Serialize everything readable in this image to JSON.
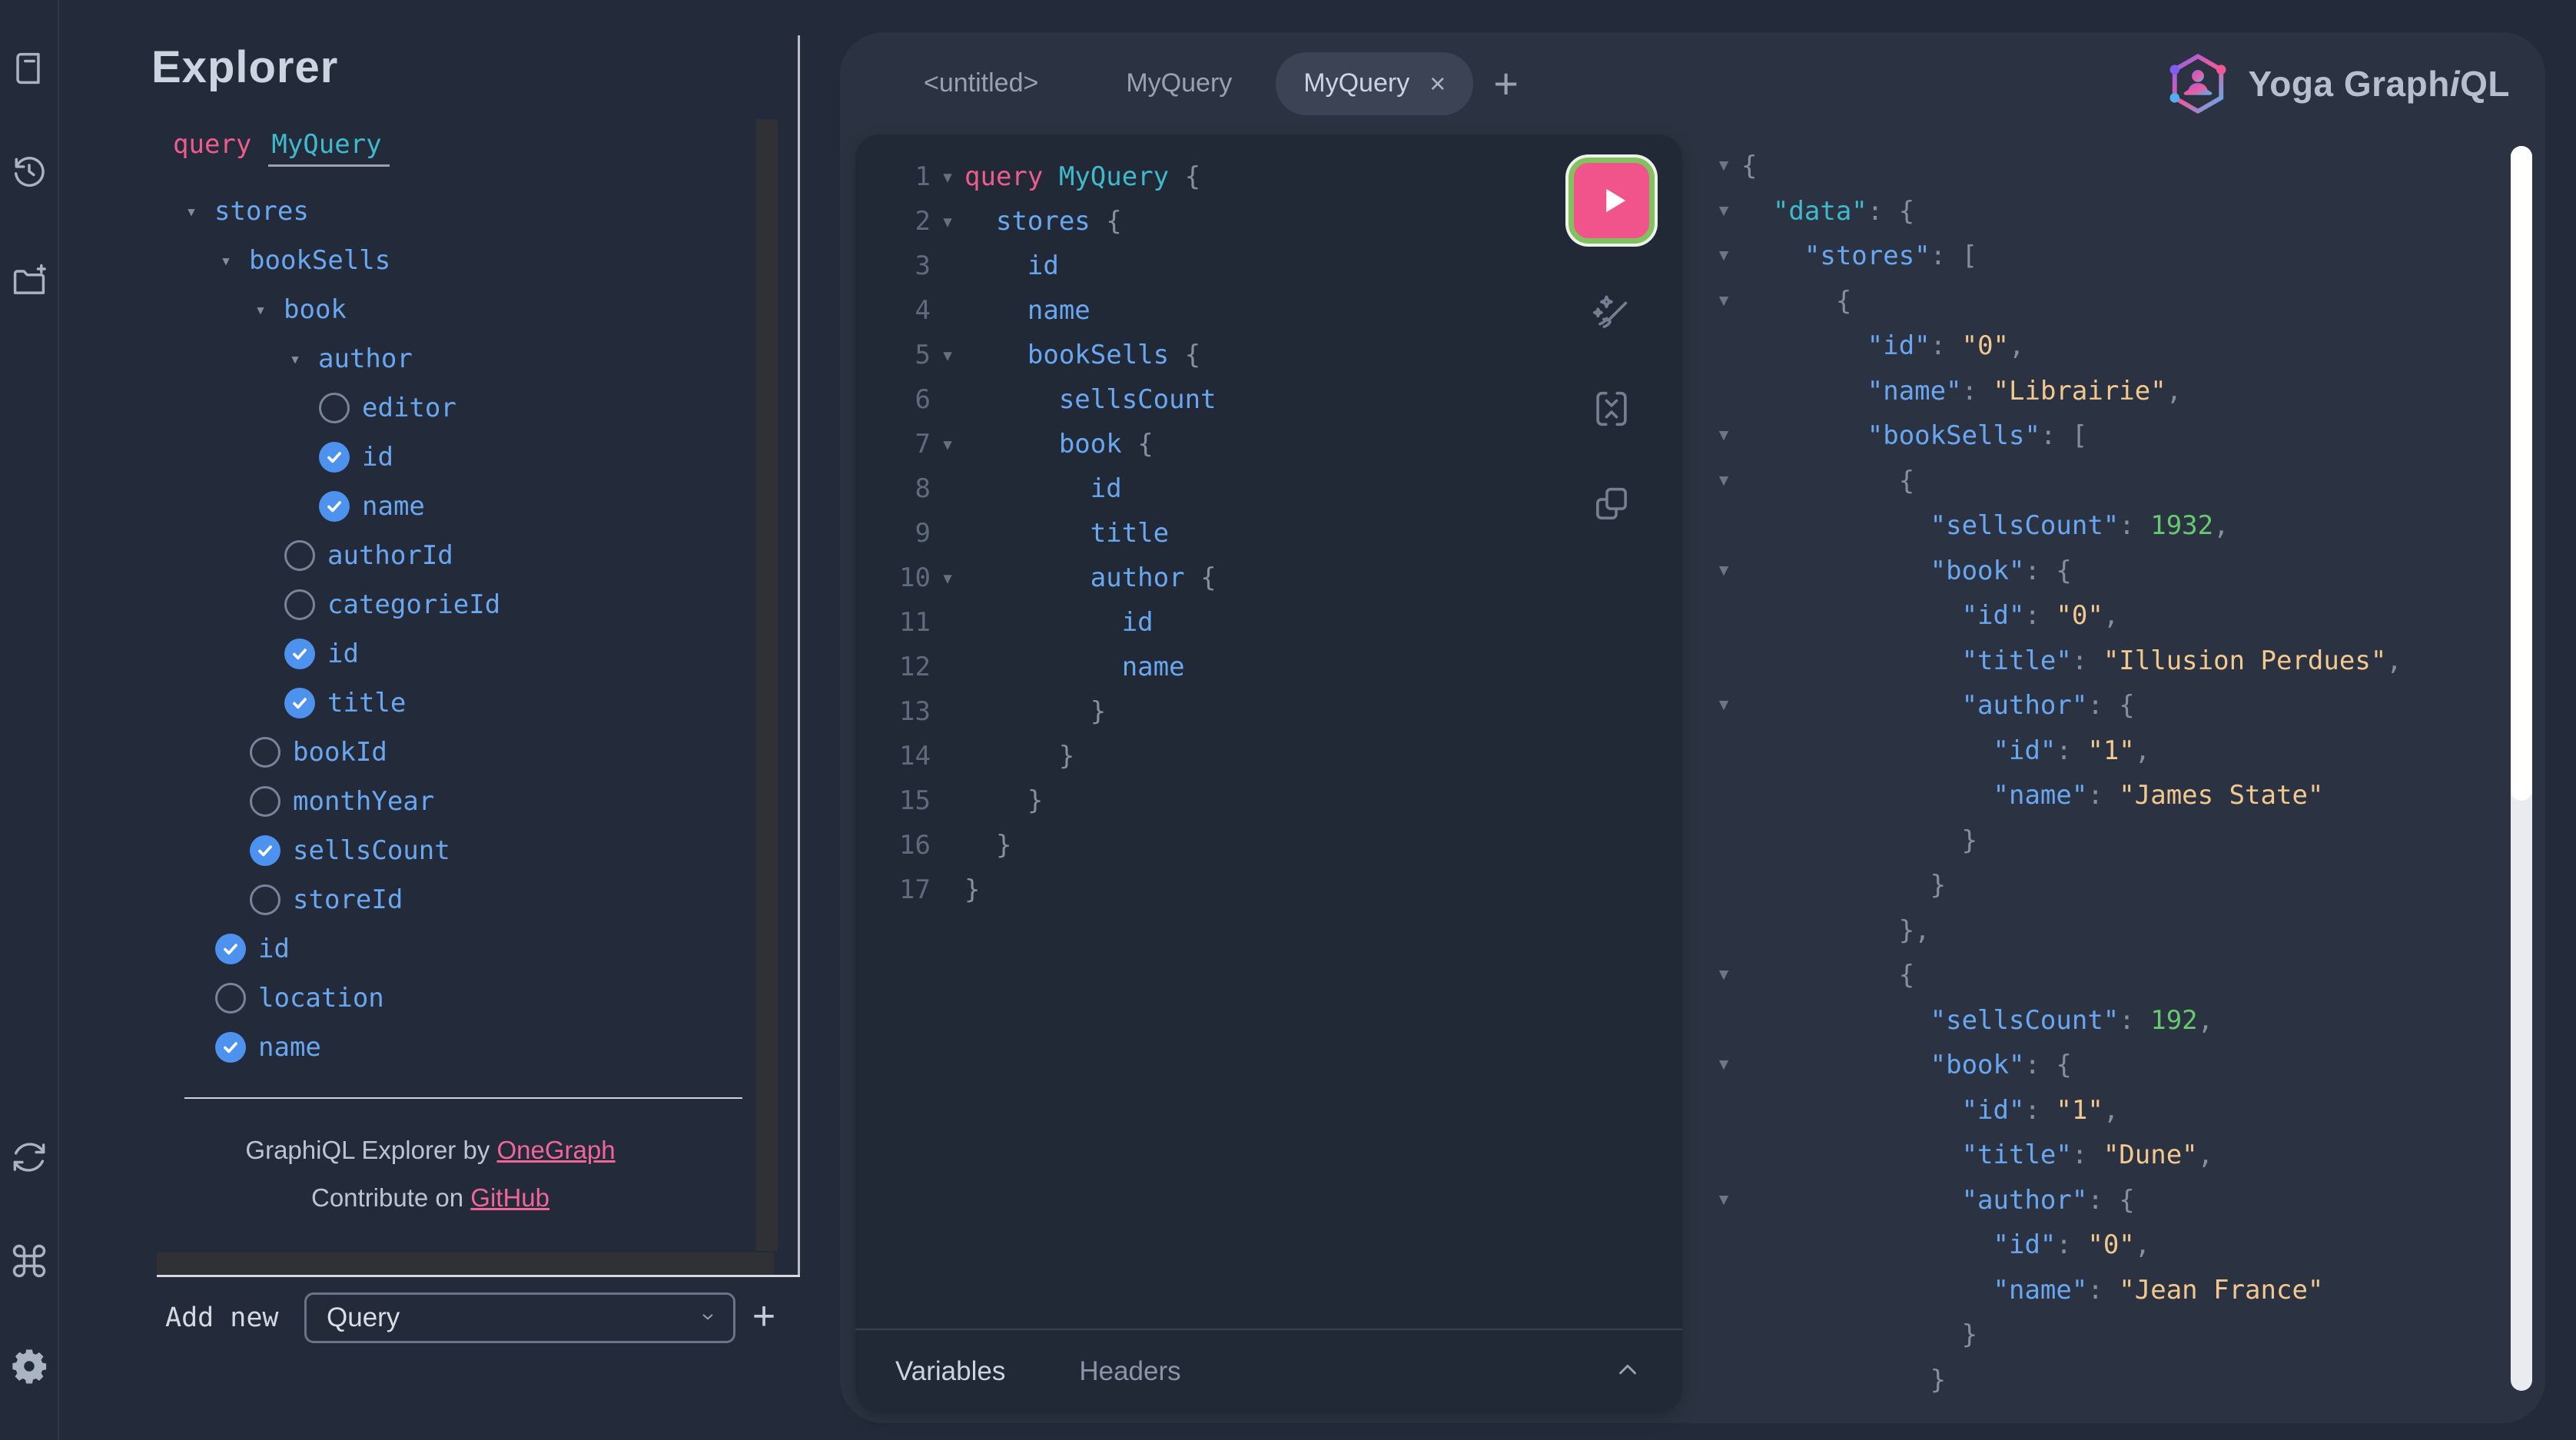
{
  "logo": {
    "text_pre": "Yoga Graph",
    "text_italic": "i",
    "text_post": "QL"
  },
  "sidebar": {
    "icons": [
      {
        "name": "docs-icon"
      },
      {
        "name": "history-icon"
      },
      {
        "name": "new-collection-icon"
      },
      {
        "name": "refetch-schema-icon"
      },
      {
        "name": "keyboard-shortcuts-icon"
      },
      {
        "name": "settings-icon"
      }
    ]
  },
  "explorer": {
    "title": "Explorer",
    "operation_keyword": "query",
    "operation_name": "MyQuery",
    "tree": [
      {
        "label": "stores",
        "depth": 0,
        "kind": "expanded"
      },
      {
        "label": "bookSells",
        "depth": 1,
        "kind": "expanded"
      },
      {
        "label": "book",
        "depth": 2,
        "kind": "expanded"
      },
      {
        "label": "author",
        "depth": 3,
        "kind": "expanded"
      },
      {
        "label": "editor",
        "depth": 4,
        "kind": "unchecked"
      },
      {
        "label": "id",
        "depth": 4,
        "kind": "checked"
      },
      {
        "label": "name",
        "depth": 4,
        "kind": "checked"
      },
      {
        "label": "authorId",
        "depth": 3,
        "kind": "unchecked"
      },
      {
        "label": "categorieId",
        "depth": 3,
        "kind": "unchecked"
      },
      {
        "label": "id",
        "depth": 3,
        "kind": "checked"
      },
      {
        "label": "title",
        "depth": 3,
        "kind": "checked"
      },
      {
        "label": "bookId",
        "depth": 2,
        "kind": "unchecked"
      },
      {
        "label": "monthYear",
        "depth": 2,
        "kind": "unchecked"
      },
      {
        "label": "sellsCount",
        "depth": 2,
        "kind": "checked"
      },
      {
        "label": "storeId",
        "depth": 2,
        "kind": "unchecked"
      },
      {
        "label": "id",
        "depth": 1,
        "kind": "checked"
      },
      {
        "label": "location",
        "depth": 1,
        "kind": "unchecked"
      },
      {
        "label": "name",
        "depth": 1,
        "kind": "checked"
      }
    ],
    "attribution": {
      "by_text": "GraphiQL Explorer by ",
      "by_link": "OneGraph",
      "contribute_text": "Contribute on ",
      "contribute_link": "GitHub"
    },
    "add_new_label": "Add new",
    "add_new_selected": "Query",
    "add_new_button": "+"
  },
  "tabs": {
    "items": [
      {
        "label": "<untitled>",
        "active": false
      },
      {
        "label": "MyQuery",
        "active": false
      },
      {
        "label": "MyQuery",
        "active": true,
        "close": "×"
      }
    ],
    "new_tab_label": "+"
  },
  "editor": {
    "lines": [
      {
        "n": 1,
        "f": true,
        "i": 0,
        "t": [
          [
            "kw",
            "query"
          ],
          [
            "pl",
            " "
          ],
          [
            "op",
            "MyQuery"
          ],
          [
            "pu",
            " {"
          ]
        ]
      },
      {
        "n": 2,
        "f": true,
        "i": 2,
        "t": [
          [
            "fld",
            "stores"
          ],
          [
            "pu",
            " {"
          ]
        ]
      },
      {
        "n": 3,
        "f": false,
        "i": 4,
        "t": [
          [
            "fld",
            "id"
          ]
        ]
      },
      {
        "n": 4,
        "f": false,
        "i": 4,
        "t": [
          [
            "fld",
            "name"
          ]
        ]
      },
      {
        "n": 5,
        "f": true,
        "i": 4,
        "t": [
          [
            "fld",
            "bookSells"
          ],
          [
            "pu",
            " {"
          ]
        ]
      },
      {
        "n": 6,
        "f": false,
        "i": 6,
        "t": [
          [
            "fld",
            "sellsCount"
          ]
        ]
      },
      {
        "n": 7,
        "f": true,
        "i": 6,
        "t": [
          [
            "fld",
            "book"
          ],
          [
            "pu",
            " {"
          ]
        ]
      },
      {
        "n": 8,
        "f": false,
        "i": 8,
        "t": [
          [
            "fld",
            "id"
          ]
        ]
      },
      {
        "n": 9,
        "f": false,
        "i": 8,
        "t": [
          [
            "fld",
            "title"
          ]
        ]
      },
      {
        "n": 10,
        "f": true,
        "i": 8,
        "t": [
          [
            "fld",
            "author"
          ],
          [
            "pu",
            " {"
          ]
        ]
      },
      {
        "n": 11,
        "f": false,
        "i": 10,
        "t": [
          [
            "fld",
            "id"
          ]
        ]
      },
      {
        "n": 12,
        "f": false,
        "i": 10,
        "t": [
          [
            "fld",
            "name"
          ]
        ]
      },
      {
        "n": 13,
        "f": false,
        "i": 8,
        "t": [
          [
            "pu",
            "}"
          ]
        ]
      },
      {
        "n": 14,
        "f": false,
        "i": 6,
        "t": [
          [
            "pu",
            "}"
          ]
        ]
      },
      {
        "n": 15,
        "f": false,
        "i": 4,
        "t": [
          [
            "pu",
            "}"
          ]
        ]
      },
      {
        "n": 16,
        "f": false,
        "i": 2,
        "t": [
          [
            "pu",
            "}"
          ]
        ]
      },
      {
        "n": 17,
        "f": false,
        "i": 0,
        "t": [
          [
            "pu",
            "}"
          ]
        ]
      }
    ],
    "footer_tabs": [
      {
        "label": "Variables",
        "active": true
      },
      {
        "label": "Headers",
        "active": false
      }
    ]
  },
  "results": {
    "lines": [
      {
        "f": true,
        "i": 0,
        "t": [
          [
            "pu",
            "{"
          ]
        ]
      },
      {
        "f": true,
        "i": 1,
        "t": [
          [
            "keyd",
            "\"data\""
          ],
          [
            "pu",
            ": {"
          ]
        ]
      },
      {
        "f": true,
        "i": 2,
        "t": [
          [
            "key",
            "\"stores\""
          ],
          [
            "pu",
            ": ["
          ]
        ]
      },
      {
        "f": true,
        "i": 3,
        "t": [
          [
            "pu",
            "{"
          ]
        ]
      },
      {
        "f": false,
        "i": 4,
        "t": [
          [
            "key",
            "\"id\""
          ],
          [
            "pu",
            ": "
          ],
          [
            "str",
            "\"0\""
          ],
          [
            "pu",
            ","
          ]
        ]
      },
      {
        "f": false,
        "i": 4,
        "t": [
          [
            "key",
            "\"name\""
          ],
          [
            "pu",
            ": "
          ],
          [
            "str",
            "\"Librairie\""
          ],
          [
            "pu",
            ","
          ]
        ]
      },
      {
        "f": true,
        "i": 4,
        "t": [
          [
            "key",
            "\"bookSells\""
          ],
          [
            "pu",
            ": ["
          ]
        ]
      },
      {
        "f": true,
        "i": 5,
        "t": [
          [
            "pu",
            "{"
          ]
        ]
      },
      {
        "f": false,
        "i": 6,
        "t": [
          [
            "key",
            "\"sellsCount\""
          ],
          [
            "pu",
            ": "
          ],
          [
            "num",
            "1932"
          ],
          [
            "pu",
            ","
          ]
        ]
      },
      {
        "f": true,
        "i": 6,
        "t": [
          [
            "key",
            "\"book\""
          ],
          [
            "pu",
            ": {"
          ]
        ]
      },
      {
        "f": false,
        "i": 7,
        "t": [
          [
            "key",
            "\"id\""
          ],
          [
            "pu",
            ": "
          ],
          [
            "str",
            "\"0\""
          ],
          [
            "pu",
            ","
          ]
        ]
      },
      {
        "f": false,
        "i": 7,
        "t": [
          [
            "key",
            "\"title\""
          ],
          [
            "pu",
            ": "
          ],
          [
            "str",
            "\"Illusion Perdues\""
          ],
          [
            "pu",
            ","
          ]
        ]
      },
      {
        "f": true,
        "i": 7,
        "t": [
          [
            "key",
            "\"author\""
          ],
          [
            "pu",
            ": {"
          ]
        ]
      },
      {
        "f": false,
        "i": 8,
        "t": [
          [
            "key",
            "\"id\""
          ],
          [
            "pu",
            ": "
          ],
          [
            "str",
            "\"1\""
          ],
          [
            "pu",
            ","
          ]
        ]
      },
      {
        "f": false,
        "i": 8,
        "t": [
          [
            "key",
            "\"name\""
          ],
          [
            "pu",
            ": "
          ],
          [
            "str",
            "\"James State\""
          ]
        ]
      },
      {
        "f": false,
        "i": 7,
        "t": [
          [
            "pu",
            "}"
          ]
        ]
      },
      {
        "f": false,
        "i": 6,
        "t": [
          [
            "pu",
            "}"
          ]
        ]
      },
      {
        "f": false,
        "i": 5,
        "t": [
          [
            "pu",
            "},"
          ]
        ]
      },
      {
        "f": true,
        "i": 5,
        "t": [
          [
            "pu",
            "{"
          ]
        ]
      },
      {
        "f": false,
        "i": 6,
        "t": [
          [
            "key",
            "\"sellsCount\""
          ],
          [
            "pu",
            ": "
          ],
          [
            "num",
            "192"
          ],
          [
            "pu",
            ","
          ]
        ]
      },
      {
        "f": true,
        "i": 6,
        "t": [
          [
            "key",
            "\"book\""
          ],
          [
            "pu",
            ": {"
          ]
        ]
      },
      {
        "f": false,
        "i": 7,
        "t": [
          [
            "key",
            "\"id\""
          ],
          [
            "pu",
            ": "
          ],
          [
            "str",
            "\"1\""
          ],
          [
            "pu",
            ","
          ]
        ]
      },
      {
        "f": false,
        "i": 7,
        "t": [
          [
            "key",
            "\"title\""
          ],
          [
            "pu",
            ": "
          ],
          [
            "str",
            "\"Dune\""
          ],
          [
            "pu",
            ","
          ]
        ]
      },
      {
        "f": true,
        "i": 7,
        "t": [
          [
            "key",
            "\"author\""
          ],
          [
            "pu",
            ": {"
          ]
        ]
      },
      {
        "f": false,
        "i": 8,
        "t": [
          [
            "key",
            "\"id\""
          ],
          [
            "pu",
            ": "
          ],
          [
            "str",
            "\"0\""
          ],
          [
            "pu",
            ","
          ]
        ]
      },
      {
        "f": false,
        "i": 8,
        "t": [
          [
            "key",
            "\"name\""
          ],
          [
            "pu",
            ": "
          ],
          [
            "str",
            "\"Jean France\""
          ]
        ]
      },
      {
        "f": false,
        "i": 7,
        "t": [
          [
            "pu",
            "}"
          ]
        ]
      },
      {
        "f": false,
        "i": 6,
        "t": [
          [
            "pu",
            "}"
          ]
        ]
      }
    ]
  }
}
